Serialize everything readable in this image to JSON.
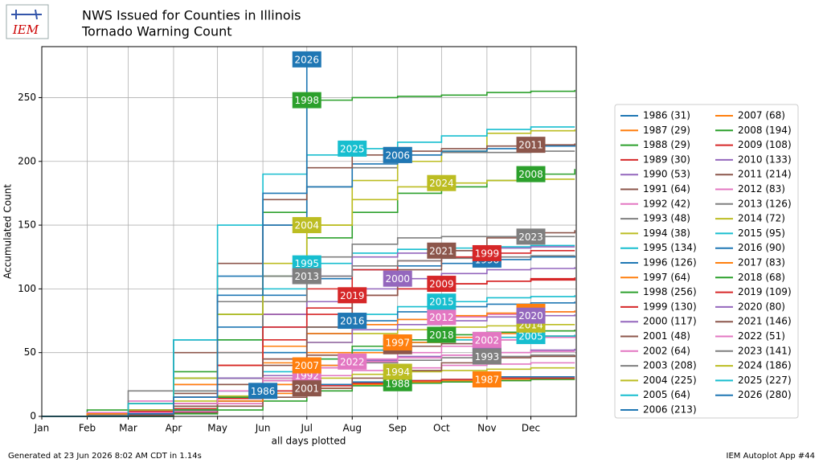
{
  "logo_text": "IEM",
  "footer": {
    "left": "Generated at 23 Jun 2026 8:02 AM CDT in 1.14s",
    "right": "IEM Autoplot App #44"
  },
  "chart_data": {
    "type": "line",
    "step": true,
    "title": "NWS Issued for Counties in Illinois",
    "subtitle": "Tornado Warning Count",
    "xlabel": "all days plotted",
    "ylabel": "Accumulated Count",
    "grid": true,
    "x": [
      1,
      32,
      60,
      91,
      121,
      152,
      182,
      213,
      244,
      274,
      305,
      335,
      365
    ],
    "xlim": [
      1,
      366
    ],
    "xticks": [
      {
        "value": 1,
        "label": "Jan"
      },
      {
        "value": 32,
        "label": "Feb"
      },
      {
        "value": 60,
        "label": "Mar"
      },
      {
        "value": 91,
        "label": "Apr"
      },
      {
        "value": 121,
        "label": "May"
      },
      {
        "value": 152,
        "label": "Jun"
      },
      {
        "value": 182,
        "label": "Jul"
      },
      {
        "value": 213,
        "label": "Aug"
      },
      {
        "value": 244,
        "label": "Sep"
      },
      {
        "value": 274,
        "label": "Oct"
      },
      {
        "value": 305,
        "label": "Nov"
      },
      {
        "value": 335,
        "label": "Dec"
      }
    ],
    "ylim": [
      0,
      290
    ],
    "yticks": [
      0,
      50,
      100,
      150,
      200,
      250
    ],
    "series": [
      {
        "name": "1986 (31)",
        "label": "1986",
        "color": "#1f77b4",
        "values": [
          0,
          0,
          1,
          4,
          12,
          20,
          25,
          27,
          28,
          29,
          31,
          31,
          31
        ]
      },
      {
        "name": "1987 (29)",
        "label": "1987",
        "color": "#ff7f0e",
        "values": [
          0,
          0,
          2,
          5,
          10,
          18,
          22,
          25,
          27,
          28,
          29,
          29,
          29
        ]
      },
      {
        "name": "1988 (29)",
        "label": "1988",
        "color": "#2ca02c",
        "values": [
          0,
          0,
          0,
          2,
          5,
          12,
          20,
          24,
          26,
          27,
          28,
          29,
          29
        ]
      },
      {
        "name": "1989 (30)",
        "label": "1989",
        "color": "#d62728",
        "values": [
          0,
          0,
          1,
          6,
          14,
          20,
          24,
          26,
          28,
          29,
          30,
          30,
          30
        ]
      },
      {
        "name": "1990 (53)",
        "label": "1990",
        "color": "#9467bd",
        "values": [
          0,
          0,
          3,
          10,
          20,
          32,
          40,
          44,
          47,
          48,
          50,
          52,
          53
        ]
      },
      {
        "name": "1991 (64)",
        "label": "1991",
        "color": "#8c564b",
        "values": [
          0,
          0,
          5,
          18,
          30,
          40,
          48,
          52,
          55,
          57,
          60,
          62,
          64
        ]
      },
      {
        "name": "1992 (42)",
        "label": "1992",
        "color": "#e377c2",
        "values": [
          0,
          0,
          0,
          4,
          10,
          25,
          32,
          36,
          38,
          40,
          41,
          42,
          42
        ]
      },
      {
        "name": "1993 (48)",
        "label": "1993",
        "color": "#7f7f7f",
        "values": [
          0,
          0,
          1,
          5,
          12,
          28,
          38,
          42,
          44,
          46,
          47,
          48,
          48
        ]
      },
      {
        "name": "1994 (38)",
        "label": "1994",
        "color": "#bcbd22",
        "values": [
          0,
          0,
          2,
          8,
          16,
          25,
          30,
          33,
          35,
          36,
          37,
          38,
          38
        ]
      },
      {
        "name": "1995 (134)",
        "label": "1995",
        "color": "#17becf",
        "values": [
          0,
          0,
          2,
          20,
          60,
          100,
          120,
          128,
          131,
          132,
          133,
          134,
          134
        ]
      },
      {
        "name": "1996 (126)",
        "label": "1996",
        "color": "#1f77b4",
        "values": [
          0,
          0,
          4,
          30,
          70,
          95,
          108,
          115,
          118,
          120,
          123,
          125,
          126
        ]
      },
      {
        "name": "1997 (64)",
        "label": "1997",
        "color": "#ff7f0e",
        "values": [
          0,
          0,
          4,
          15,
          30,
          42,
          50,
          55,
          58,
          60,
          62,
          63,
          64
        ]
      },
      {
        "name": "1998 (256)",
        "label": "1998",
        "color": "#2ca02c",
        "values": [
          0,
          5,
          10,
          35,
          80,
          160,
          248,
          250,
          251,
          252,
          254,
          255,
          256
        ]
      },
      {
        "name": "1999 (130)",
        "label": "1999",
        "color": "#d62728",
        "values": [
          0,
          0,
          5,
          25,
          50,
          80,
          100,
          115,
          122,
          125,
          128,
          130,
          130
        ]
      },
      {
        "name": "2000 (117)",
        "label": "2000",
        "color": "#9467bd",
        "values": [
          0,
          0,
          3,
          15,
          40,
          70,
          90,
          100,
          108,
          112,
          115,
          116,
          117
        ]
      },
      {
        "name": "2001 (48)",
        "label": "2001",
        "color": "#8c564b",
        "values": [
          0,
          0,
          1,
          3,
          8,
          15,
          22,
          30,
          36,
          42,
          46,
          47,
          48
        ]
      },
      {
        "name": "2002 (64)",
        "label": "2002",
        "color": "#e377c2",
        "values": [
          0,
          0,
          1,
          5,
          15,
          28,
          38,
          45,
          50,
          55,
          60,
          62,
          64
        ]
      },
      {
        "name": "2003 (208)",
        "label": "2003",
        "color": "#7f7f7f",
        "values": [
          0,
          0,
          2,
          15,
          100,
          150,
          180,
          195,
          205,
          207,
          207,
          208,
          208
        ]
      },
      {
        "name": "2004 (225)",
        "label": "2004",
        "color": "#bcbd22",
        "values": [
          0,
          0,
          0,
          12,
          30,
          90,
          150,
          185,
          200,
          208,
          222,
          224,
          225
        ]
      },
      {
        "name": "2005 (64)",
        "label": "2005",
        "color": "#17becf",
        "values": [
          0,
          0,
          1,
          8,
          20,
          35,
          45,
          52,
          58,
          60,
          62,
          63,
          64
        ]
      },
      {
        "name": "2006 (213)",
        "label": "2006",
        "color": "#1f77b4",
        "values": [
          0,
          0,
          5,
          60,
          110,
          150,
          180,
          198,
          205,
          208,
          210,
          212,
          213
        ]
      },
      {
        "name": "2007 (68)",
        "label": "2007",
        "color": "#ff7f0e",
        "values": [
          0,
          0,
          1,
          5,
          12,
          25,
          40,
          50,
          58,
          62,
          65,
          67,
          68
        ]
      },
      {
        "name": "2008 (194)",
        "label": "2008",
        "color": "#2ca02c",
        "values": [
          0,
          2,
          10,
          30,
          60,
          110,
          140,
          160,
          175,
          180,
          185,
          190,
          194
        ]
      },
      {
        "name": "2009 (108)",
        "label": "2009",
        "color": "#d62728",
        "values": [
          0,
          0,
          4,
          15,
          40,
          60,
          80,
          95,
          100,
          104,
          106,
          107,
          108
        ]
      },
      {
        "name": "2010 (133)",
        "label": "2010",
        "color": "#9467bd",
        "values": [
          0,
          0,
          1,
          10,
          40,
          80,
          110,
          125,
          128,
          130,
          132,
          133,
          133
        ]
      },
      {
        "name": "2011 (214)",
        "label": "2011",
        "color": "#8c564b",
        "values": [
          0,
          0,
          10,
          50,
          120,
          170,
          195,
          205,
          208,
          210,
          212,
          213,
          214
        ]
      },
      {
        "name": "2012 (83)",
        "label": "2012",
        "color": "#e377c2",
        "values": [
          0,
          3,
          12,
          25,
          40,
          55,
          65,
          72,
          76,
          78,
          80,
          82,
          83
        ]
      },
      {
        "name": "2013 (126)",
        "label": "2013",
        "color": "#7f7f7f",
        "values": [
          0,
          1,
          5,
          20,
          50,
          90,
          110,
          118,
          122,
          124,
          125,
          126,
          126
        ]
      },
      {
        "name": "2014 (72)",
        "label": "2014",
        "color": "#bcbd22",
        "values": [
          0,
          0,
          2,
          10,
          25,
          45,
          58,
          65,
          68,
          70,
          71,
          72,
          72
        ]
      },
      {
        "name": "2015 (95)",
        "label": "2015",
        "color": "#17becf",
        "values": [
          0,
          0,
          0,
          5,
          20,
          50,
          70,
          80,
          86,
          90,
          93,
          94,
          95
        ]
      },
      {
        "name": "2016 (90)",
        "label": "2016",
        "color": "#1f77b4",
        "values": [
          0,
          0,
          5,
          15,
          30,
          50,
          65,
          75,
          82,
          86,
          88,
          89,
          90
        ]
      },
      {
        "name": "2017 (83)",
        "label": "2017",
        "color": "#ff7f0e",
        "values": [
          0,
          2,
          10,
          25,
          40,
          55,
          65,
          72,
          76,
          79,
          81,
          82,
          83
        ]
      },
      {
        "name": "2018 (68)",
        "label": "2018",
        "color": "#2ca02c",
        "values": [
          0,
          0,
          1,
          5,
          15,
          30,
          45,
          55,
          60,
          64,
          66,
          67,
          68
        ]
      },
      {
        "name": "2019 (109)",
        "label": "2019",
        "color": "#d62728",
        "values": [
          0,
          0,
          2,
          10,
          40,
          70,
          85,
          95,
          100,
          104,
          106,
          108,
          109
        ]
      },
      {
        "name": "2020 (80)",
        "label": "2020",
        "color": "#9467bd",
        "values": [
          0,
          0,
          3,
          15,
          30,
          45,
          58,
          68,
          72,
          75,
          78,
          79,
          80
        ]
      },
      {
        "name": "2021 (146)",
        "label": "2021",
        "color": "#8c564b",
        "values": [
          0,
          0,
          1,
          8,
          25,
          45,
          70,
          95,
          115,
          130,
          140,
          144,
          146
        ]
      },
      {
        "name": "2022 (51)",
        "label": "2022",
        "color": "#e377c2",
        "values": [
          0,
          0,
          3,
          10,
          20,
          30,
          38,
          43,
          46,
          48,
          50,
          51,
          51
        ]
      },
      {
        "name": "2023 (141)",
        "label": "2023",
        "color": "#7f7f7f",
        "values": [
          0,
          0,
          20,
          60,
          90,
          110,
          125,
          135,
          140,
          141,
          141,
          141,
          141
        ]
      },
      {
        "name": "2024 (186)",
        "label": "2024",
        "color": "#bcbd22",
        "values": [
          0,
          0,
          5,
          30,
          80,
          120,
          150,
          170,
          180,
          183,
          185,
          186,
          186
        ]
      },
      {
        "name": "2025 (227)",
        "label": "2025",
        "color": "#17becf",
        "values": [
          0,
          0,
          10,
          60,
          150,
          190,
          205,
          210,
          215,
          220,
          225,
          227,
          227
        ]
      },
      {
        "name": "2026 (280)",
        "label": "2026",
        "color": "#1f77b4",
        "values": [
          0,
          0,
          2,
          15,
          95,
          175,
          280,
          null,
          null,
          null,
          null,
          null,
          null
        ]
      }
    ]
  }
}
